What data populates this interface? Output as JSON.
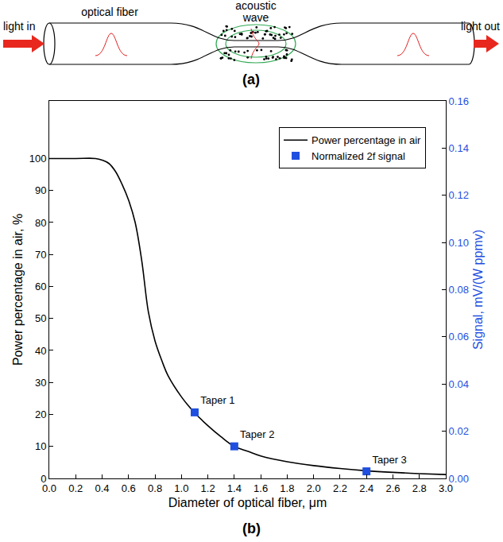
{
  "diagram": {
    "light_in": "light in",
    "optical_fiber": "optical fiber",
    "acoustic_wave": [
      "acoustic",
      "wave"
    ],
    "light_out": "light out",
    "caption": "(a)"
  },
  "chart_caption": "(b)",
  "chart_data": {
    "type": "line",
    "xlabel": "Diameter of optical fiber, μm",
    "ylabel": "Power percentage in air, %",
    "y2label": "Signal, mV/(W ppmv)",
    "xlim": [
      0,
      3
    ],
    "xticks": [
      {
        "value": 0,
        "label": "0.0"
      },
      0.2,
      0.4,
      0.6,
      0.8,
      {
        "value": 1,
        "label": "1.0"
      },
      1.2,
      1.4,
      1.6,
      1.8,
      {
        "value": 2,
        "label": "2.0"
      },
      2.2,
      2.4,
      2.6,
      2.8,
      {
        "value": 3,
        "label": "3.0"
      }
    ],
    "ylim": [
      0,
      118
    ],
    "yticks": [
      0,
      10,
      20,
      30,
      40,
      50,
      60,
      70,
      80,
      90,
      100
    ],
    "y2lim": [
      0,
      0.16
    ],
    "y2ticks": [
      {
        "value": 0,
        "label": "0.00"
      },
      0.02,
      0.04,
      0.06,
      0.08,
      {
        "value": 0.1,
        "label": "0.10"
      },
      0.12,
      0.14,
      0.16
    ],
    "grid": false,
    "legend": "upper right",
    "series": [
      {
        "name": "Power percentage in air",
        "type": "line",
        "color": "#000000",
        "x": [
          0,
          0.2,
          0.35,
          0.4,
          0.45,
          0.5,
          0.55,
          0.6,
          0.65,
          0.7,
          0.75,
          0.8,
          0.85,
          0.9,
          1.0,
          1.1,
          1.2,
          1.3,
          1.4,
          1.5,
          1.6,
          1.8,
          2.0,
          2.2,
          2.4,
          2.6,
          2.8,
          3.0
        ],
        "values": [
          100,
          100,
          100,
          99.5,
          98.5,
          96,
          92,
          87,
          80,
          68,
          52,
          43,
          37,
          32,
          25.5,
          20.5,
          16.5,
          13,
          10,
          8.5,
          7,
          5.2,
          4,
          3.1,
          2.4,
          1.9,
          1.5,
          1.2
        ]
      },
      {
        "name": "Normalized 2f signal",
        "type": "scatter",
        "marker": "square",
        "color": "#1f4fe0",
        "axis": "y2",
        "x": [
          1.1,
          1.4,
          2.4
        ],
        "values": [
          0.028,
          0.0136,
          0.003
        ],
        "labels": [
          "Taper 1",
          "Taper 2",
          "Taper 3"
        ]
      }
    ]
  }
}
